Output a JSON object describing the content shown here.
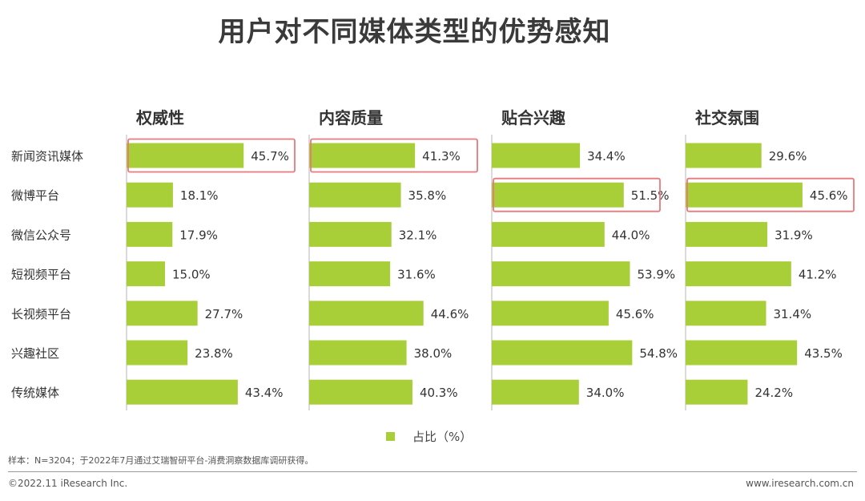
{
  "title": "用户对不同媒体类型的优势感知",
  "colors": {
    "bar": "#a9cf38",
    "highlight": "#e8797d",
    "axis": "#b5b5b5"
  },
  "chart_data": {
    "type": "bar",
    "orientation": "horizontal",
    "categories": [
      "新闻资讯媒体",
      "微博平台",
      "微信公众号",
      "短视频平台",
      "长视频平台",
      "兴趣社区",
      "传统媒体"
    ],
    "panels": [
      {
        "title": "权威性",
        "values": [
          45.7,
          18.1,
          17.9,
          15.0,
          27.7,
          23.8,
          43.4
        ],
        "highlight_index": 0
      },
      {
        "title": "内容质量",
        "values": [
          41.3,
          35.8,
          32.1,
          31.6,
          44.6,
          38.0,
          40.3
        ],
        "highlight_index": 0
      },
      {
        "title": "贴合兴趣",
        "values": [
          34.4,
          51.5,
          44.0,
          53.9,
          45.6,
          54.8,
          34.0
        ],
        "highlight_index": 1
      },
      {
        "title": "社交氛围",
        "values": [
          29.6,
          45.6,
          31.9,
          41.2,
          31.4,
          43.5,
          24.2
        ],
        "highlight_index": 1
      }
    ],
    "legend": {
      "label": "占比（%）",
      "placement": "bottom"
    },
    "value_suffix": "%"
  },
  "note": "样本：N=3204；于2022年7月通过艾瑞智研平台-消费洞察数据库调研获得。",
  "footer": {
    "left": "©2022.11 iResearch Inc.",
    "right": "www.iresearch.com.cn"
  }
}
